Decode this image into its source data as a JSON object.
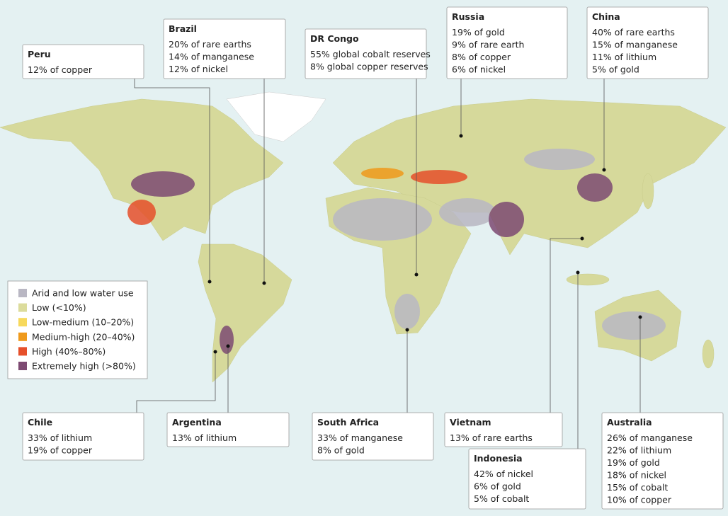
{
  "callouts": [
    {
      "title": "Peru",
      "lines": [
        "12% of copper"
      ]
    },
    {
      "title": "Brazil",
      "lines": [
        "20% of rare earths",
        "14% of manganese",
        "12% of nickel"
      ]
    },
    {
      "title": "DR Congo",
      "lines": [
        "55% global cobalt reserves",
        "8% global copper reserves"
      ]
    },
    {
      "title": "Russia",
      "lines": [
        "19% of gold",
        "9% of rare earth",
        "8% of copper",
        "6% of nickel"
      ]
    },
    {
      "title": "China",
      "lines": [
        "40% of rare earths",
        "15% of manganese",
        "11% of lithium",
        "5% of gold"
      ]
    },
    {
      "title": "Chile",
      "lines": [
        "33% of lithium",
        "19% of copper"
      ]
    },
    {
      "title": "Argentina",
      "lines": [
        "13% of lithium"
      ]
    },
    {
      "title": "South Africa",
      "lines": [
        "33% of manganese",
        "8% of gold"
      ]
    },
    {
      "title": "Vietnam",
      "lines": [
        "13% of rare earths"
      ]
    },
    {
      "title": "Indonesia",
      "lines": [
        "42% of nickel",
        "6% of gold",
        "5% of cobalt"
      ]
    },
    {
      "title": "Australia",
      "lines": [
        "26% of manganese",
        "22% of lithium",
        "19% of gold",
        "18% of nickel",
        "15% of cobalt",
        "10% of copper"
      ]
    }
  ],
  "legend": {
    "items": [
      {
        "label": "Arid and low water use",
        "color": "#b9b7c3"
      },
      {
        "label": "Low (<10%)",
        "color": "#dcdc9c"
      },
      {
        "label": "Low-medium (10–20%)",
        "color": "#f7d95c"
      },
      {
        "label": "Medium-high (20–40%)",
        "color": "#ef9a1c"
      },
      {
        "label": "High (40%–80%)",
        "color": "#e6502b"
      },
      {
        "label": "Extremely high (>80%)",
        "color": "#7d4a72"
      }
    ]
  }
}
